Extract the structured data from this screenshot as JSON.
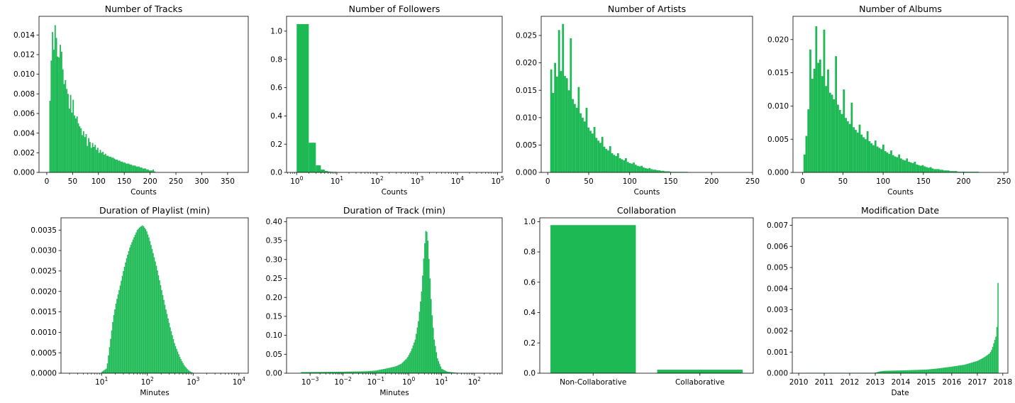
{
  "colors": {
    "bar": "#1db954",
    "axis": "#000000",
    "background": "#ffffff"
  },
  "chart_data": [
    {
      "type": "bar",
      "title": "Number of Tracks",
      "xlabel": "Counts",
      "ylabel": "",
      "xscale": "linear",
      "xlim": [
        -15,
        390
      ],
      "ylim": [
        0,
        0.0159
      ],
      "xticks": [
        0,
        50,
        100,
        150,
        200,
        250,
        300,
        350
      ],
      "xticklabels": [
        "0",
        "50",
        "100",
        "150",
        "200",
        "250",
        "300",
        "350"
      ],
      "yticks": [
        0,
        0.002,
        0.004,
        0.006,
        0.008,
        0.01,
        0.012,
        0.014
      ],
      "yticklabels": [
        "0.000",
        "0.002",
        "0.004",
        "0.006",
        "0.008",
        "0.010",
        "0.012",
        "0.014"
      ],
      "bins": {
        "start": 5,
        "step": 2.5,
        "values": [
          0.0073,
          0.0114,
          0.0143,
          0.0125,
          0.015,
          0.0137,
          0.0118,
          0.0117,
          0.013,
          0.0123,
          0.0105,
          0.009,
          0.0094,
          0.0085,
          0.008,
          0.0065,
          0.0079,
          0.0061,
          0.0074,
          0.0058,
          0.0055,
          0.0057,
          0.005,
          0.0047,
          0.0045,
          0.0038,
          0.0042,
          0.0036,
          0.0039,
          0.0027,
          0.0035,
          0.0031,
          0.0025,
          0.003,
          0.0026,
          0.0028,
          0.0023,
          0.0025,
          0.002,
          0.0023,
          0.002,
          0.0021,
          0.0018,
          0.0019,
          0.0017,
          0.0017,
          0.0016,
          0.0016,
          0.0015,
          0.0015,
          0.0014,
          0.0013,
          0.0013,
          0.0012,
          0.0012,
          0.0011,
          0.0011,
          0.001,
          0.001,
          0.0009,
          0.0009,
          0.0009,
          0.0008,
          0.0008,
          0.0007,
          0.0007,
          0.0007,
          0.0006,
          0.0006,
          0.0006,
          0.0005,
          0.0005,
          0.0004,
          0.0004,
          0.0004,
          0.0003,
          0.0003,
          0.0002,
          0.0002,
          0.0002,
          0.0003,
          0.0001
        ]
      }
    },
    {
      "type": "bar",
      "title": "Number of Followers",
      "xlabel": "Counts",
      "ylabel": "",
      "xscale": "log",
      "xlim": [
        0.56,
        130000
      ],
      "ylim": [
        0,
        1.105
      ],
      "xticks": [
        1,
        10,
        100,
        1000,
        10000,
        100000
      ],
      "xticklabels": [
        "10^0",
        "10^1",
        "10^2",
        "10^3",
        "10^4",
        "10^5"
      ],
      "yticks": [
        0,
        0.2,
        0.4,
        0.6,
        0.8,
        1.0
      ],
      "yticklabels": [
        "0.0",
        "0.2",
        "0.4",
        "0.6",
        "0.8",
        "1.0"
      ],
      "bars": [
        {
          "x0": 1,
          "x1": 2,
          "v": 1.05
        },
        {
          "x0": 2,
          "x1": 3,
          "v": 0.21
        },
        {
          "x0": 3,
          "x1": 4,
          "v": 0.05
        },
        {
          "x0": 4,
          "x1": 5,
          "v": 0.02
        },
        {
          "x0": 5,
          "x1": 6,
          "v": 0.01
        },
        {
          "x0": 6,
          "x1": 7,
          "v": 0.006
        },
        {
          "x0": 7,
          "x1": 8,
          "v": 0.004
        },
        {
          "x0": 8,
          "x1": 10,
          "v": 0.003
        }
      ]
    },
    {
      "type": "bar",
      "title": "Number of Artists",
      "xlabel": "Counts",
      "ylabel": "",
      "xscale": "linear",
      "xlim": [
        -8,
        250
      ],
      "ylim": [
        0,
        0.0285
      ],
      "xticks": [
        0,
        50,
        100,
        150,
        200,
        250
      ],
      "xticklabels": [
        "0",
        "50",
        "100",
        "150",
        "200",
        "250"
      ],
      "yticks": [
        0,
        0.005,
        0.01,
        0.015,
        0.02,
        0.025
      ],
      "yticklabels": [
        "0.000",
        "0.005",
        "0.010",
        "0.015",
        "0.020",
        "0.025"
      ],
      "bins": {
        "start": 3,
        "step": 2.4,
        "values": [
          0.0188,
          0.0145,
          0.02,
          0.0175,
          0.026,
          0.0185,
          0.0271,
          0.0176,
          0.0172,
          0.015,
          0.0245,
          0.0134,
          0.0125,
          0.0118,
          0.0156,
          0.0108,
          0.01,
          0.0093,
          0.0118,
          0.0082,
          0.0076,
          0.0071,
          0.0083,
          0.0063,
          0.0058,
          0.0054,
          0.0065,
          0.0047,
          0.0043,
          0.004,
          0.0048,
          0.0035,
          0.0032,
          0.003,
          0.0035,
          0.0026,
          0.0024,
          0.0022,
          0.0026,
          0.0019,
          0.0017,
          0.0016,
          0.0018,
          0.0014,
          0.0012,
          0.0011,
          0.0012,
          0.0009,
          0.0008,
          0.0007,
          0.0008,
          0.0006,
          0.0005,
          0.0005,
          0.0004,
          0.0004,
          0.0003,
          0.0003,
          0.0002,
          0.0002,
          0.0002,
          0.0001,
          0.0001,
          0.0001,
          0.0001,
          0.0001,
          0.0001,
          0.0001,
          0.0001,
          0.0001
        ]
      }
    },
    {
      "type": "bar",
      "title": "Number of Albums",
      "xlabel": "Counts",
      "ylabel": "",
      "xscale": "linear",
      "xlim": [
        -12,
        255
      ],
      "ylim": [
        0,
        0.0235
      ],
      "xticks": [
        0,
        50,
        100,
        150,
        200,
        250
      ],
      "xticklabels": [
        "0",
        "50",
        "100",
        "150",
        "200",
        "250"
      ],
      "yticks": [
        0,
        0.005,
        0.01,
        0.015,
        0.02
      ],
      "yticklabels": [
        "0.000",
        "0.005",
        "0.010",
        "0.015",
        "0.020"
      ],
      "bins": {
        "start": 1,
        "step": 2.45,
        "values": [
          0.0027,
          0.0055,
          0.0095,
          0.0185,
          0.0141,
          0.0156,
          0.022,
          0.0165,
          0.017,
          0.0145,
          0.0215,
          0.013,
          0.0155,
          0.012,
          0.0117,
          0.011,
          0.0175,
          0.0102,
          0.0094,
          0.0088,
          0.0125,
          0.0082,
          0.0077,
          0.0073,
          0.0105,
          0.0068,
          0.0064,
          0.006,
          0.0072,
          0.0057,
          0.0053,
          0.005,
          0.0062,
          0.0047,
          0.0044,
          0.0041,
          0.0048,
          0.0039,
          0.0037,
          0.0035,
          0.0042,
          0.0032,
          0.003,
          0.0028,
          0.0033,
          0.0026,
          0.0024,
          0.0023,
          0.0027,
          0.0021,
          0.0019,
          0.0018,
          0.0021,
          0.0016,
          0.0015,
          0.0014,
          0.0016,
          0.0012,
          0.0011,
          0.001,
          0.0011,
          0.0009,
          0.0008,
          0.0007,
          0.0008,
          0.0006,
          0.0005,
          0.0005,
          0.0005,
          0.0004,
          0.0004,
          0.0003,
          0.0003,
          0.0003,
          0.0002,
          0.0002,
          0.0002,
          0.0002,
          0.0001,
          0.0001,
          0.0001,
          0.0001,
          0.0001,
          0.0001,
          0.0001,
          0.0001,
          0.0001,
          0.0001,
          0.0001
        ]
      }
    },
    {
      "type": "bar",
      "title": "Duration of Playlist (min)",
      "xlabel": "Minutes",
      "ylabel": "",
      "xscale": "log",
      "xlim": [
        1.3,
        16000
      ],
      "ylim": [
        0,
        0.0038
      ],
      "xticks": [
        10,
        100,
        1000,
        10000
      ],
      "xticklabels": [
        "10^1",
        "10^2",
        "10^3",
        "10^4"
      ],
      "yticks": [
        0,
        0.0005,
        0.001,
        0.0015,
        0.002,
        0.0025,
        0.003,
        0.0035
      ],
      "yticklabels": [
        "0.0000",
        "0.0005",
        "0.0010",
        "0.0015",
        "0.0020",
        "0.0025",
        "0.0030",
        "0.0035"
      ],
      "curve": {
        "x": [
          10,
          13,
          15,
          18,
          21,
          25,
          30,
          35,
          42,
          50,
          60,
          70,
          80,
          95,
          110,
          130,
          160,
          200,
          250,
          320,
          400,
          520,
          650,
          800,
          900,
          1000
        ],
        "y": [
          3e-05,
          0.00012,
          0.00065,
          0.00135,
          0.00175,
          0.0021,
          0.0025,
          0.0028,
          0.0031,
          0.0033,
          0.0035,
          0.00358,
          0.00362,
          0.0035,
          0.0033,
          0.003,
          0.0026,
          0.0021,
          0.0016,
          0.0011,
          0.0007,
          0.00038,
          0.00018,
          7e-05,
          3e-05,
          1e-05
        ]
      }
    },
    {
      "type": "bar",
      "title": "Duration of Track (min)",
      "xlabel": "Minutes",
      "ylabel": "",
      "xscale": "symlog",
      "xlim": [
        -0.0003,
        700
      ],
      "ylim": [
        0,
        0.41
      ],
      "xticks": [
        0.001,
        0.01,
        0.1,
        1,
        10,
        100
      ],
      "xticklabels": [
        "10^-3",
        "10^-2",
        "10^-1",
        "10^0",
        "10^1",
        "10^2"
      ],
      "yticks": [
        0,
        0.05,
        0.1,
        0.15,
        0.2,
        0.25,
        0.3,
        0.35,
        0.4
      ],
      "yticklabels": [
        "0.00",
        "0.05",
        "0.10",
        "0.15",
        "0.20",
        "0.25",
        "0.30",
        "0.35",
        "0.40"
      ],
      "curve": {
        "x": [
          0.0005,
          0.001,
          0.01,
          0.05,
          0.1,
          0.2,
          0.4,
          0.6,
          0.9,
          1.2,
          1.6,
          2.0,
          2.5,
          3.0,
          3.4,
          3.8,
          4.3,
          5.0,
          6.0,
          7.5,
          10,
          15,
          30,
          100,
          300
        ],
        "y": [
          0.003,
          0.003,
          0.004,
          0.005,
          0.007,
          0.012,
          0.018,
          0.025,
          0.04,
          0.06,
          0.09,
          0.14,
          0.22,
          0.33,
          0.385,
          0.36,
          0.28,
          0.17,
          0.09,
          0.04,
          0.012,
          0.004,
          0.001,
          0.0005,
          0.0002
        ]
      }
    },
    {
      "type": "bar",
      "title": "Collaboration",
      "xlabel": "",
      "ylabel": "",
      "categories": [
        "Non-Collaborative",
        "Collaborative"
      ],
      "values": [
        0.977,
        0.023
      ],
      "ylim": [
        0,
        1.025
      ],
      "yticks": [
        0,
        0.2,
        0.4,
        0.6,
        0.8,
        1.0
      ],
      "yticklabels": [
        "0.0",
        "0.2",
        "0.4",
        "0.6",
        "0.8",
        "1.0"
      ]
    },
    {
      "type": "bar",
      "title": "Modification Date",
      "xlabel": "Date",
      "ylabel": "",
      "xscale": "date",
      "xlim": [
        "2009-10-01",
        "2018-03-15"
      ],
      "ylim": [
        0,
        0.00735
      ],
      "xticks": [
        "2010-01-01",
        "2011-01-01",
        "2012-01-01",
        "2013-01-01",
        "2014-01-01",
        "2015-01-01",
        "2016-01-01",
        "2017-01-01",
        "2018-01-01"
      ],
      "xticklabels": [
        "2010",
        "2011",
        "2012",
        "2013",
        "2014",
        "2015",
        "2016",
        "2017",
        "2018"
      ],
      "yticks": [
        0,
        0.001,
        0.002,
        0.003,
        0.004,
        0.005,
        0.006,
        0.007
      ],
      "yticklabels": [
        "0.000",
        "0.001",
        "0.002",
        "0.003",
        "0.004",
        "0.005",
        "0.006",
        "0.007"
      ],
      "curve": {
        "x": [
          "2010-01-01",
          "2013-01-01",
          "2013-03-01",
          "2013-05-01",
          "2014-01-01",
          "2015-01-01",
          "2015-07-01",
          "2016-01-01",
          "2016-07-01",
          "2017-01-01",
          "2017-03-01",
          "2017-05-01",
          "2017-07-01",
          "2017-08-01",
          "2017-09-01",
          "2017-10-01",
          "2017-10-20",
          "2017-11-01"
        ],
        "y": [
          1e-05,
          2e-05,
          8e-05,
          0.00011,
          0.00013,
          0.00017,
          0.00023,
          0.00031,
          0.0004,
          0.00058,
          0.00068,
          0.0008,
          0.00095,
          0.00115,
          0.0015,
          0.0018,
          0.0027,
          0.007
        ]
      }
    }
  ]
}
